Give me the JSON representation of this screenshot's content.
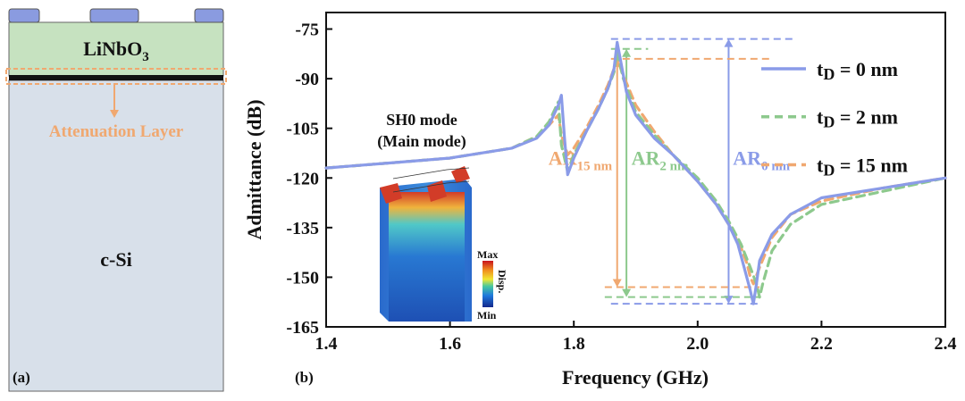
{
  "panel_a": {
    "label": "(a)",
    "top_layer": "LiNbO",
    "top_layer_sub": "3",
    "attenuation_label": "Attenuation Layer",
    "substrate_label": "c-Si",
    "colors": {
      "electrode": "#8a9be0",
      "linbo3": "#c6e2c0",
      "si": "#d8e0ea",
      "attenuation": "#f0a870",
      "film": "#111111"
    }
  },
  "chart_data": {
    "type": "line",
    "panel_label": "(b)",
    "xlabel": "Frequency (GHz)",
    "ylabel": "Admittance (dB)",
    "xlim": [
      1.4,
      2.4
    ],
    "ylim": [
      -165,
      -70
    ],
    "xticks": [
      1.4,
      1.6,
      1.8,
      2.0,
      2.2,
      2.4
    ],
    "yticks": [
      -75,
      -90,
      -105,
      -120,
      -135,
      -150,
      -165
    ],
    "xtick_labels": [
      "1.4",
      "1.6",
      "1.8",
      "2.0",
      "2.2",
      "2.4"
    ],
    "ytick_labels": [
      "-75",
      "-90",
      "-105",
      "-120",
      "-135",
      "-150",
      "-165"
    ],
    "series": [
      {
        "name": "tD = 0 nm",
        "legend_main": "t",
        "legend_sub": "D",
        "legend_rest": " = 0 nm",
        "color": "#8a9be8",
        "dash": "solid",
        "x": [
          1.4,
          1.5,
          1.6,
          1.7,
          1.74,
          1.76,
          1.775,
          1.78,
          1.785,
          1.79,
          1.8,
          1.82,
          1.84,
          1.855,
          1.865,
          1.87,
          1.875,
          1.885,
          1.9,
          1.93,
          1.96,
          2.0,
          2.03,
          2.05,
          2.065,
          2.075,
          2.085,
          2.09,
          2.095,
          2.1,
          2.12,
          2.15,
          2.2,
          2.3,
          2.4
        ],
        "y": [
          -117,
          -115.5,
          -114,
          -111,
          -108,
          -104,
          -98,
          -95,
          -108,
          -119,
          -114,
          -106,
          -99,
          -93,
          -87,
          -79,
          -84,
          -94,
          -101,
          -108,
          -113,
          -121,
          -128,
          -134,
          -140,
          -147,
          -154,
          -158,
          -152,
          -145,
          -137,
          -131,
          -126,
          -123,
          -120
        ]
      },
      {
        "name": "tD = 2 nm",
        "legend_main": "t",
        "legend_sub": "D",
        "legend_rest": " = 2 nm",
        "color": "#8dc98d",
        "dash": "dashed",
        "x": [
          1.4,
          1.5,
          1.6,
          1.7,
          1.74,
          1.76,
          1.77,
          1.775,
          1.78,
          1.79,
          1.8,
          1.82,
          1.84,
          1.855,
          1.865,
          1.87,
          1.88,
          1.9,
          1.93,
          1.96,
          2.0,
          2.03,
          2.05,
          2.07,
          2.085,
          2.095,
          2.1,
          2.105,
          2.12,
          2.15,
          2.2,
          2.3,
          2.4
        ],
        "y": [
          -117,
          -115.5,
          -114,
          -111,
          -107.5,
          -103,
          -99,
          -97,
          -110,
          -118,
          -113,
          -106,
          -99,
          -93,
          -88,
          -82,
          -90,
          -100,
          -107,
          -113,
          -120,
          -127,
          -133,
          -140,
          -147,
          -152,
          -156,
          -152,
          -142,
          -134,
          -128,
          -124,
          -120
        ]
      },
      {
        "name": "tD = 15 nm",
        "legend_main": "t",
        "legend_sub": "D",
        "legend_rest": " = 15 nm",
        "color": "#f0a870",
        "dash": "dashed",
        "x": [
          1.4,
          1.5,
          1.6,
          1.7,
          1.74,
          1.76,
          1.77,
          1.775,
          1.78,
          1.79,
          1.8,
          1.82,
          1.84,
          1.855,
          1.865,
          1.87,
          1.88,
          1.9,
          1.93,
          1.96,
          2.0,
          2.03,
          2.05,
          2.07,
          2.08,
          2.085,
          2.09,
          2.1,
          2.12,
          2.15,
          2.2,
          2.3,
          2.4
        ],
        "y": [
          -117,
          -115.5,
          -114,
          -111,
          -107.5,
          -104,
          -102,
          -101,
          -107,
          -113,
          -111,
          -105,
          -98,
          -92,
          -87,
          -84,
          -89,
          -98,
          -106,
          -113,
          -121,
          -128,
          -134,
          -141,
          -146,
          -150,
          -152,
          -147,
          -138,
          -131,
          -127,
          -123,
          -120
        ]
      }
    ],
    "ar_markers": [
      {
        "label_main": "AR",
        "label_sub": "0 nm",
        "color": "#8a9be8",
        "x": 2.05,
        "y_top": -78,
        "y_bottom": -158,
        "line_x": [
          1.86,
          2.16
        ],
        "bottom_x": [
          1.86,
          2.1
        ]
      },
      {
        "label_main": "AR",
        "label_sub": "2 nm",
        "color": "#8dc98d",
        "x": 1.885,
        "y_top": -81,
        "y_bottom": -156,
        "line_x": [
          1.86,
          1.92
        ],
        "bottom_x": [
          1.85,
          2.1
        ]
      },
      {
        "label_main": "AR",
        "label_sub": "15 nm",
        "color": "#f0a870",
        "x": 1.87,
        "y_top": -84,
        "y_bottom": -153,
        "line_x": [
          1.86,
          2.12
        ],
        "bottom_x": [
          1.85,
          2.1
        ]
      }
    ],
    "annotations": {
      "mode_line1": "SH0 mode",
      "mode_line2": "(Main mode)"
    },
    "inset": {
      "legend_max": "Max",
      "legend_min": "Min",
      "legend_title": "Disp."
    }
  }
}
